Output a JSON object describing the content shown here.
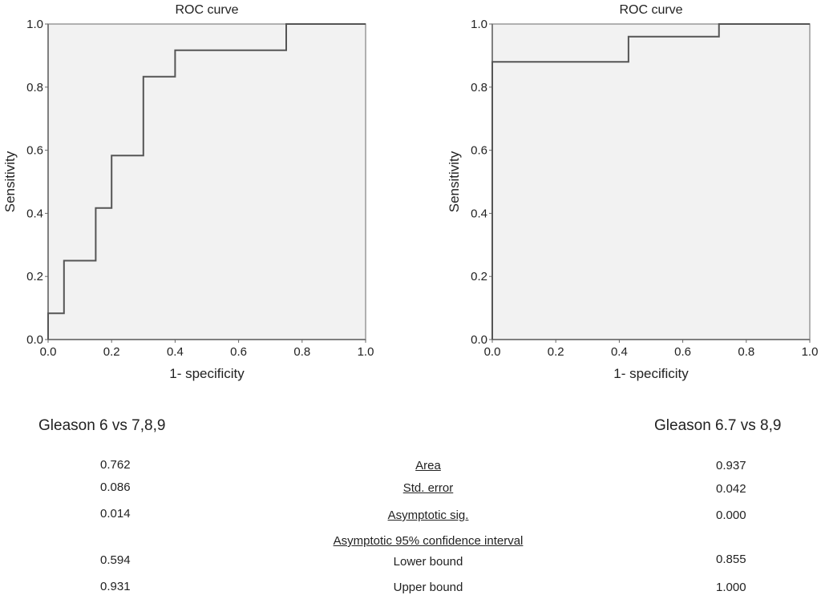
{
  "chart_data": [
    {
      "type": "line",
      "title": "ROC curve",
      "xlabel": "1- specificity",
      "ylabel": "Sensitivity",
      "xlim": [
        0,
        1
      ],
      "ylim": [
        0,
        1
      ],
      "xticks": [
        "0.0",
        "0.2",
        "0.4",
        "0.6",
        "0.8",
        "1.0"
      ],
      "yticks": [
        "0.0",
        "0.2",
        "0.4",
        "0.6",
        "0.8",
        "1.0"
      ],
      "x": [
        0,
        0,
        0.05,
        0.05,
        0.15,
        0.15,
        0.2,
        0.2,
        0.3,
        0.3,
        0.4,
        0.4,
        0.75,
        0.75,
        1
      ],
      "y": [
        0,
        0.083,
        0.083,
        0.25,
        0.25,
        0.417,
        0.417,
        0.583,
        0.583,
        0.833,
        0.833,
        0.917,
        0.917,
        1,
        1
      ],
      "subtitle": "Gleason 6 vs 7,8,9"
    },
    {
      "type": "line",
      "title": "ROC curve",
      "xlabel": "1- specificity",
      "ylabel": "Sensitivity",
      "xlim": [
        0,
        1
      ],
      "ylim": [
        0,
        1
      ],
      "xticks": [
        "0.0",
        "0.2",
        "0.4",
        "0.6",
        "0.8",
        "1.0"
      ],
      "yticks": [
        "0.0",
        "0.2",
        "0.4",
        "0.6",
        "0.8",
        "1.0"
      ],
      "x": [
        0,
        0,
        0.429,
        0.429,
        0.714,
        0.714,
        1
      ],
      "y": [
        0,
        0.88,
        0.88,
        0.96,
        0.96,
        1,
        1
      ],
      "subtitle": "Gleason 6.7 vs 8,9"
    }
  ],
  "colors": {
    "plot_bg": "#f2f2f2",
    "line": "#555555"
  },
  "table": {
    "ci_header": "Asymptotic 95% confidence interval",
    "rows": [
      {
        "label": "Area",
        "left": "0.762",
        "right": "0.937"
      },
      {
        "label": "Std. error",
        "left": "0.086",
        "right": "0.042"
      },
      {
        "label": "Asymptotic sig.",
        "left": "0.014",
        "right": "0.000"
      },
      {
        "label": "Lower bound",
        "left": "0.594",
        "right": "0.855"
      },
      {
        "label": "Upper bound",
        "left": "0.931",
        "right": "1.000"
      }
    ]
  }
}
